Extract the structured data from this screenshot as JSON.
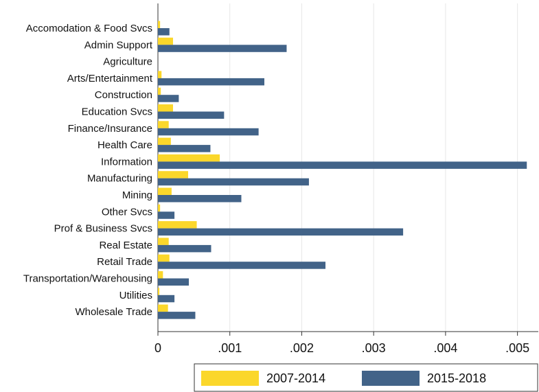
{
  "chart_data": {
    "type": "hbar",
    "categories": [
      "Accomodation & Food Svcs",
      "Admin Support",
      "Agriculture",
      "Arts/Entertainment",
      "Construction",
      "Education Svcs",
      "Finance/Insurance",
      "Health Care",
      "Information",
      "Manufacturing",
      "Mining",
      "Other Svcs",
      "Prof & Business Svcs",
      "Real Estate",
      "Retail Trade",
      "Transportation/Warehousing",
      "Utilities",
      "Wholesale Trade"
    ],
    "series": [
      {
        "name": "2007-2014",
        "color": "#fbd72b",
        "values": [
          3e-05,
          0.00021,
          0,
          5e-05,
          4e-05,
          0.00021,
          0.00015,
          0.00018,
          0.00086,
          0.00042,
          0.00019,
          3e-05,
          0.00054,
          0.00015,
          0.00016,
          7e-05,
          2e-05,
          0.00014
        ]
      },
      {
        "name": "2015-2018",
        "color": "#426388",
        "values": [
          0.00016,
          0.00179,
          0,
          0.00148,
          0.00029,
          0.00092,
          0.0014,
          0.00073,
          0.00513,
          0.0021,
          0.00116,
          0.00023,
          0.00341,
          0.00074,
          0.00233,
          0.00043,
          0.00023,
          0.00052
        ]
      }
    ],
    "xlim": [
      0,
      0.00529
    ],
    "xticks": [
      0,
      {
        "value": 0.001,
        "label": ".001"
      },
      {
        "value": 0.002,
        "label": ".002"
      },
      {
        "value": 0.003,
        "label": ".003"
      },
      {
        "value": 0.004,
        "label": ".004"
      },
      {
        "value": 0.005,
        "label": ".005"
      }
    ],
    "grid": true
  }
}
